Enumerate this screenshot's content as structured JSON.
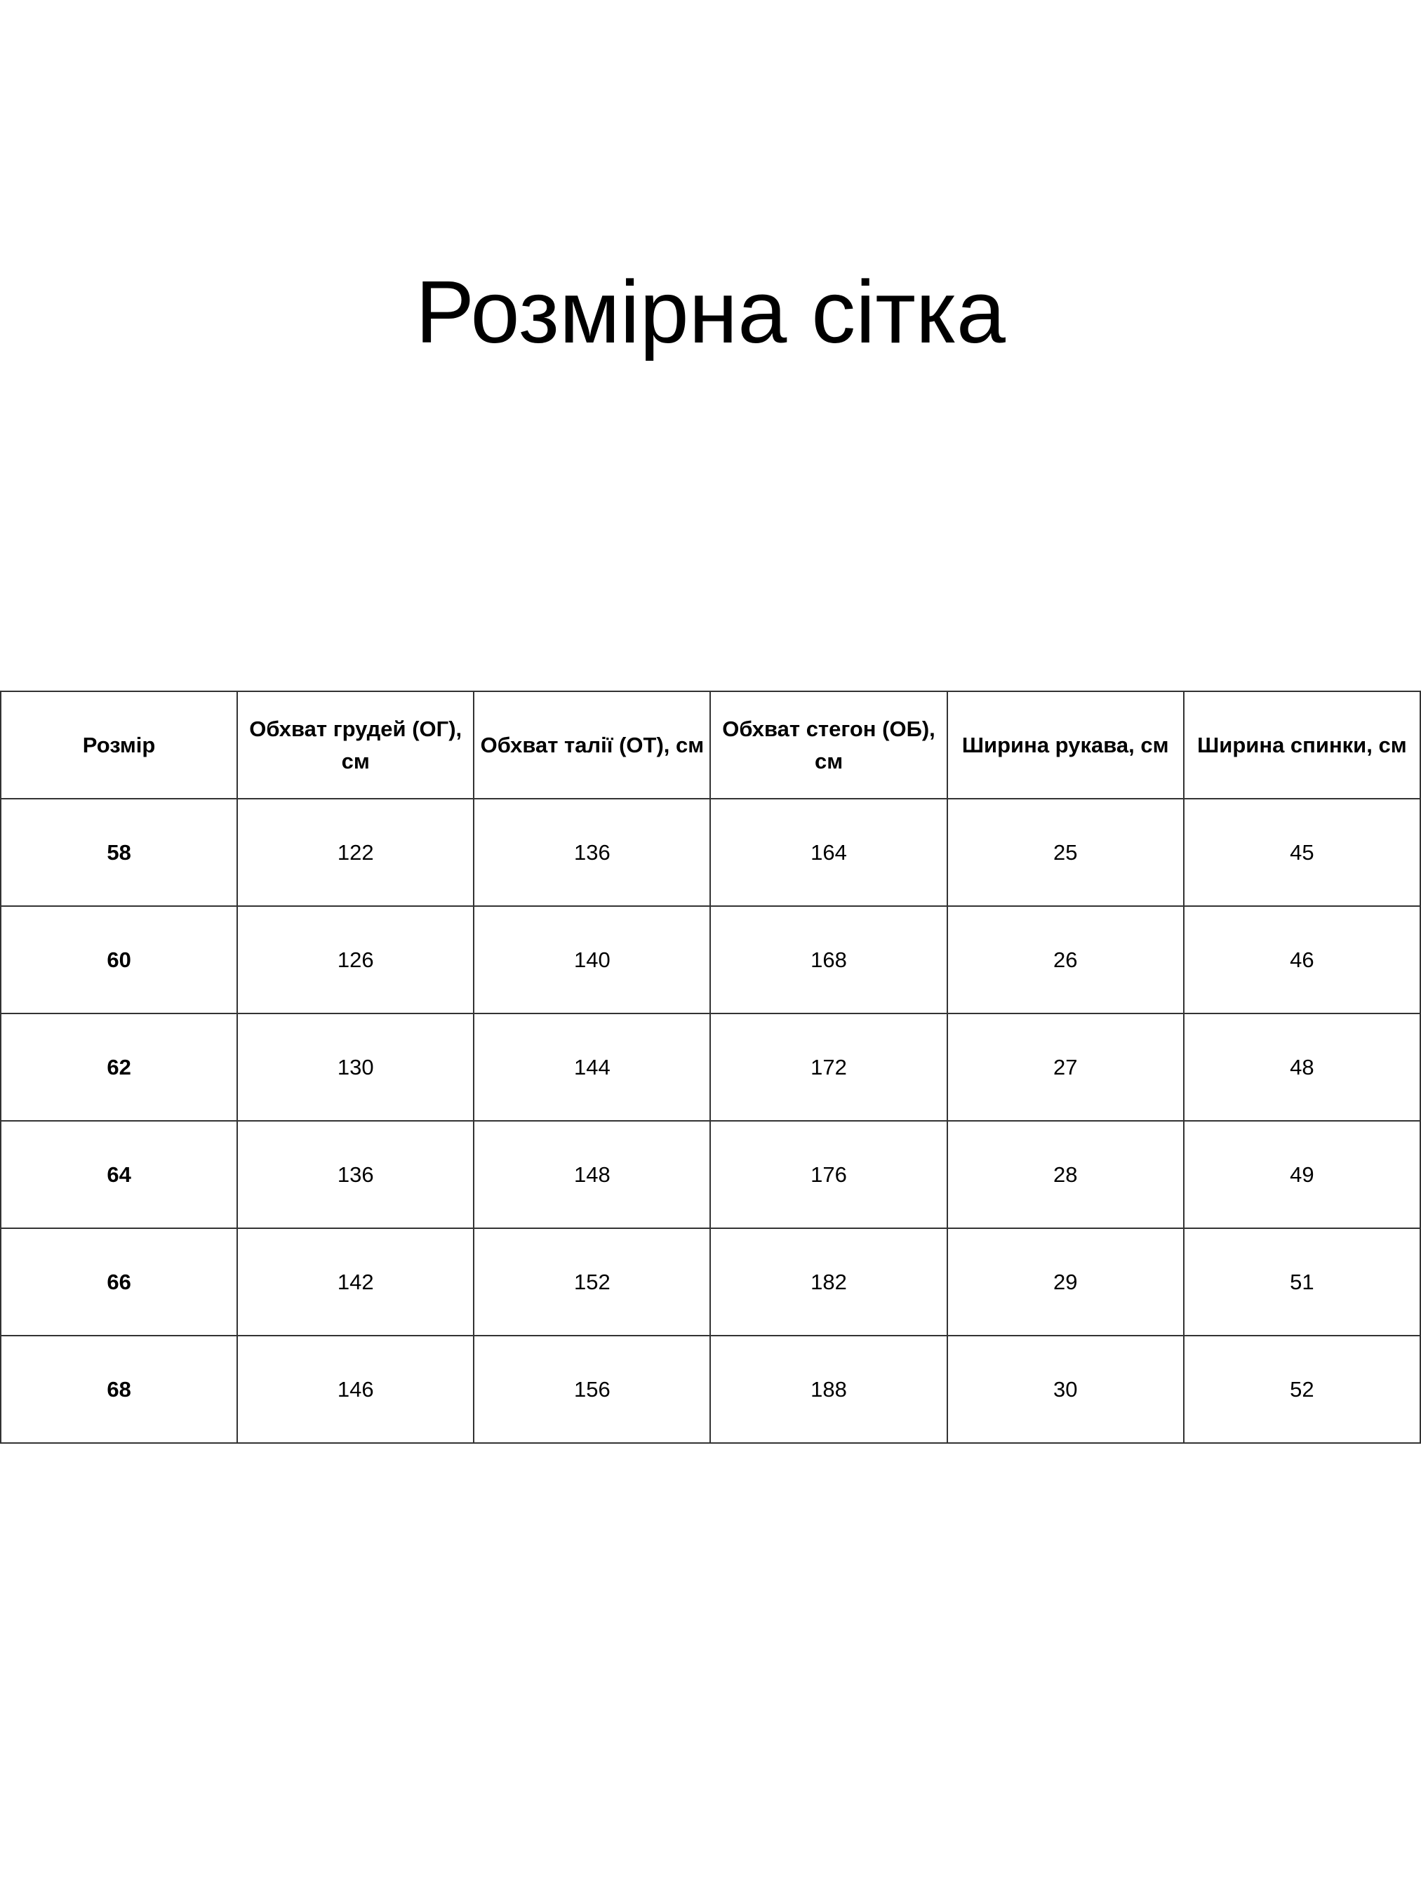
{
  "title": "Розмірна сітка",
  "table": {
    "headers": [
      "Розмір",
      "Обхват грудей (ОГ), см",
      "Обхват талії (ОТ), см",
      "Обхват стегон (ОБ), см",
      "Ширина рукава, см",
      "Ширина спинки, см"
    ],
    "rows": [
      [
        "58",
        "122",
        "136",
        "164",
        "25",
        "45"
      ],
      [
        "60",
        "126",
        "140",
        "168",
        "26",
        "46"
      ],
      [
        "62",
        "130",
        "144",
        "172",
        "27",
        "48"
      ],
      [
        "64",
        "136",
        "148",
        "176",
        "28",
        "49"
      ],
      [
        "66",
        "142",
        "152",
        "182",
        "29",
        "51"
      ],
      [
        "68",
        "146",
        "156",
        "188",
        "30",
        "52"
      ]
    ]
  }
}
